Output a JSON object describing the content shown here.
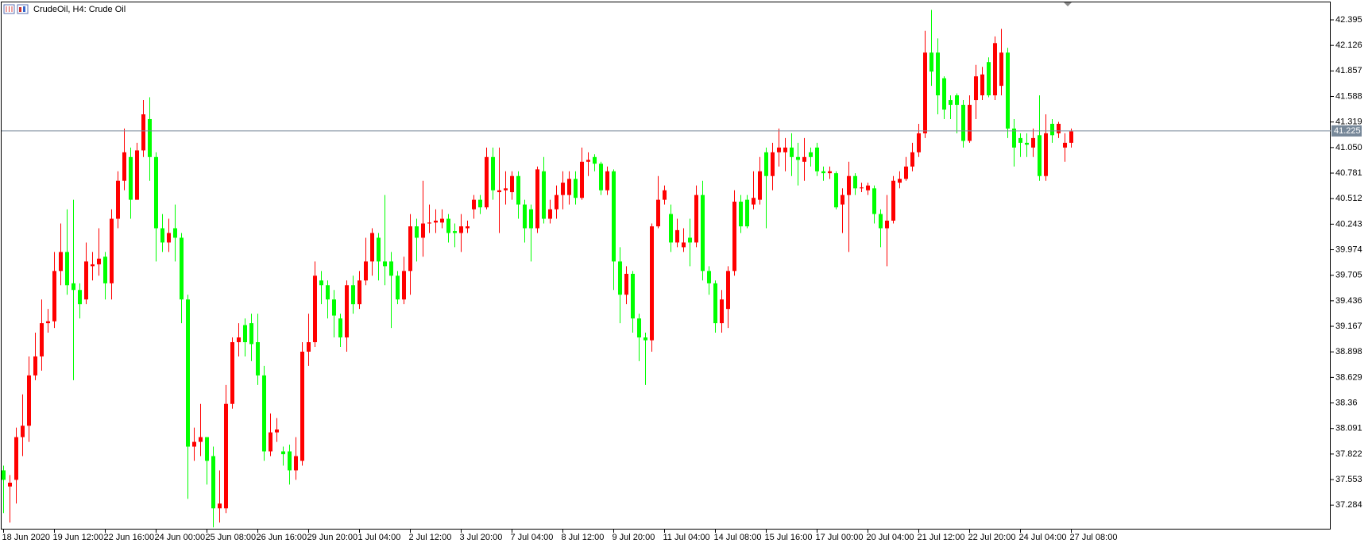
{
  "chart_data": {
    "type": "candlestick",
    "title": "CrudeOil, H4:  Crude Oil",
    "up_color": "#ff0000",
    "down_color": "#00ff00",
    "last_price": 41.225,
    "ylim": [
      37.035,
      42.579
    ],
    "yticks": [
      42.395,
      42.126,
      41.857,
      41.588,
      41.319,
      {
        "value": 41.05,
        "label": "41.050"
      },
      40.781,
      40.512,
      40.243,
      39.974,
      39.705,
      39.436,
      39.167,
      38.898,
      38.629,
      38.36,
      38.091,
      37.822,
      37.553,
      37.284
    ],
    "categories": [
      "18 Jun 2020",
      null,
      null,
      null,
      null,
      null,
      null,
      null,
      "19 Jun 12:00",
      null,
      null,
      null,
      null,
      null,
      null,
      null,
      "22 Jun 16:00",
      null,
      null,
      null,
      null,
      null,
      null,
      null,
      "24 Jun 00:00",
      null,
      null,
      null,
      null,
      null,
      null,
      null,
      "25 Jun 08:00",
      null,
      null,
      null,
      null,
      null,
      null,
      null,
      "26 Jun 16:00",
      null,
      null,
      null,
      null,
      null,
      null,
      null,
      "29 Jun 20:00",
      null,
      null,
      null,
      null,
      null,
      null,
      null,
      "1 Jul 04:00",
      null,
      null,
      null,
      null,
      null,
      null,
      null,
      "2 Jul 12:00",
      null,
      null,
      null,
      null,
      null,
      null,
      null,
      "3 Jul 20:00",
      null,
      null,
      null,
      null,
      null,
      null,
      null,
      "7 Jul 04:00",
      null,
      null,
      null,
      null,
      null,
      null,
      null,
      "8 Jul 12:00",
      null,
      null,
      null,
      null,
      null,
      null,
      null,
      "9 Jul 20:00",
      null,
      null,
      null,
      null,
      null,
      null,
      null,
      "11 Jul 04:00",
      null,
      null,
      null,
      null,
      null,
      null,
      null,
      "14 Jul 08:00",
      null,
      null,
      null,
      null,
      null,
      null,
      null,
      "15 Jul 16:00",
      null,
      null,
      null,
      null,
      null,
      null,
      null,
      "17 Jul 00:00",
      null,
      null,
      null,
      null,
      null,
      null,
      null,
      "20 Jul 04:00",
      null,
      null,
      null,
      null,
      null,
      null,
      null,
      "21 Jul 12:00",
      null,
      null,
      null,
      null,
      null,
      null,
      null,
      "22 Jul 20:00",
      null,
      null,
      null,
      null,
      null,
      null,
      null,
      "24 Jul 04:00",
      null,
      null,
      null,
      null,
      null,
      null,
      null,
      "27 Jul 08:00"
    ],
    "open": [
      37.65,
      37.48,
      37.55,
      38.0,
      38.12,
      38.65,
      38.85,
      39.2,
      39.22,
      39.75,
      39.95,
      39.62,
      39.55,
      39.45,
      39.8,
      39.82,
      39.9,
      39.62,
      40.3,
      40.7,
      40.95,
      40.5,
      41.02,
      41.35,
      40.95,
      40.2,
      40.05,
      40.2,
      40.1,
      39.45,
      37.9,
      37.95,
      38.0,
      37.8,
      37.25,
      37.25,
      38.35,
      39.0,
      39.18,
      39.2,
      39.0,
      38.65,
      37.85,
      38.05,
      37.85,
      37.85,
      37.65,
      37.75,
      38.9,
      39.0,
      39.65,
      39.6,
      39.45,
      39.25,
      39.05,
      39.6,
      39.4,
      39.65,
      39.85,
      40.1,
      39.85,
      39.85,
      39.7,
      39.45,
      39.75,
      40.22,
      40.1,
      40.25,
      40.26,
      40.26,
      40.3,
      40.17,
      40.15,
      40.2,
      40.4,
      40.5,
      40.42,
      40.95,
      40.58,
      40.6,
      40.58,
      40.75,
      40.45,
      40.4,
      40.2,
      40.8,
      40.3,
      40.4,
      40.55,
      40.55,
      40.72,
      40.52,
      40.9,
      40.95,
      40.88,
      40.6,
      40.8,
      39.85,
      39.5,
      39.72,
      39.25,
      39.05,
      39.02,
      40.22,
      40.5,
      40.35,
      40.05,
      40.0,
      40.1,
      40.05,
      40.55,
      39.75,
      39.62,
      39.2,
      39.35,
      39.75,
      40.48,
      40.5,
      40.45,
      40.5,
      41.0,
      40.75,
      41.0,
      41.0,
      41.05,
      40.95,
      40.9,
      41.0,
      41.05,
      40.8,
      40.78,
      40.78,
      40.45,
      40.55,
      40.75,
      40.62,
      40.6,
      40.62,
      40.35,
      40.2,
      40.28,
      40.68,
      40.72,
      40.85,
      41.0,
      41.2,
      42.05,
      42.05,
      41.78,
      41.55,
      41.6,
      41.5,
      41.12,
      41.55,
      41.6,
      41.95,
      41.6,
      41.7,
      42.05,
      41.25,
      41.15,
      41.1,
      41.05,
      41.18,
      40.75,
      41.3,
      41.2,
      41.05,
      41.1
    ],
    "high": [
      37.7,
      37.6,
      38.1,
      38.45,
      38.85,
      39.1,
      39.45,
      39.35,
      39.95,
      40.25,
      40.4,
      40.5,
      39.62,
      40.05,
      39.95,
      40.2,
      39.95,
      40.4,
      40.8,
      41.25,
      41.05,
      41.1,
      41.55,
      41.58,
      41.0,
      40.35,
      40.3,
      40.45,
      40.15,
      39.5,
      38.1,
      38.35,
      38.0,
      37.9,
      37.65,
      38.55,
      39.05,
      39.2,
      39.25,
      39.3,
      39.3,
      38.75,
      38.25,
      38.2,
      37.9,
      37.92,
      38.0,
      39.0,
      39.3,
      39.85,
      39.75,
      39.65,
      39.55,
      39.3,
      39.65,
      39.7,
      39.75,
      40.1,
      40.2,
      40.15,
      40.55,
      39.95,
      39.75,
      39.9,
      40.35,
      40.3,
      40.7,
      40.45,
      40.4,
      40.4,
      40.35,
      40.25,
      40.35,
      40.28,
      40.55,
      40.55,
      41.05,
      41.05,
      41.05,
      40.8,
      40.8,
      40.8,
      40.5,
      40.45,
      40.85,
      40.95,
      40.5,
      40.65,
      40.8,
      40.8,
      40.8,
      41.05,
      41.0,
      40.98,
      40.9,
      40.85,
      40.82,
      40.0,
      39.8,
      39.75,
      39.3,
      39.1,
      40.25,
      40.75,
      40.65,
      40.45,
      40.3,
      40.2,
      40.3,
      40.65,
      40.7,
      39.8,
      39.65,
      39.55,
      39.8,
      40.6,
      40.55,
      40.55,
      40.8,
      40.95,
      41.05,
      41.1,
      41.25,
      41.15,
      41.2,
      41.1,
      41.15,
      41.05,
      41.1,
      40.85,
      40.85,
      40.8,
      40.62,
      40.9,
      40.78,
      40.68,
      40.68,
      40.65,
      40.4,
      40.55,
      40.75,
      40.8,
      40.95,
      41.1,
      41.3,
      42.28,
      42.5,
      42.2,
      41.8,
      41.6,
      41.62,
      41.55,
      41.6,
      41.92,
      41.9,
      42.0,
      42.22,
      42.3,
      42.1,
      41.35,
      41.2,
      41.2,
      41.25,
      41.6,
      41.4,
      41.35,
      41.32,
      41.2,
      41.25
    ],
    "low": [
      37.2,
      37.1,
      37.3,
      37.8,
      37.95,
      38.6,
      38.7,
      39.1,
      39.15,
      39.6,
      39.5,
      38.6,
      39.25,
      39.4,
      39.65,
      39.7,
      39.45,
      39.45,
      40.2,
      40.6,
      40.3,
      40.5,
      40.95,
      40.7,
      39.85,
      39.95,
      39.95,
      39.85,
      39.2,
      37.35,
      37.75,
      37.8,
      37.5,
      37.05,
      37.1,
      37.2,
      38.3,
      38.85,
      38.85,
      38.8,
      38.55,
      37.75,
      37.8,
      37.95,
      37.7,
      37.5,
      37.55,
      37.7,
      38.75,
      38.95,
      39.4,
      39.25,
      39.05,
      38.95,
      38.9,
      39.3,
      39.35,
      39.6,
      39.7,
      39.65,
      39.6,
      39.15,
      39.4,
      39.4,
      39.5,
      39.85,
      39.9,
      40.15,
      40.15,
      40.2,
      40.05,
      40.0,
      39.95,
      40.15,
      40.3,
      40.35,
      40.4,
      40.5,
      40.15,
      40.45,
      40.5,
      40.3,
      40.05,
      39.85,
      40.15,
      40.25,
      40.25,
      40.3,
      40.4,
      40.45,
      40.45,
      40.5,
      40.75,
      40.8,
      40.55,
      40.55,
      39.55,
      39.2,
      39.4,
      39.1,
      38.8,
      38.55,
      38.9,
      40.2,
      40.45,
      39.95,
      40.0,
      39.95,
      39.8,
      40.0,
      39.65,
      39.5,
      39.1,
      39.1,
      39.15,
      39.7,
      40.15,
      40.2,
      40.4,
      40.45,
      40.2,
      40.6,
      40.85,
      40.8,
      40.75,
      40.65,
      40.7,
      40.85,
      40.75,
      40.7,
      40.72,
      40.4,
      40.15,
      39.95,
      40.55,
      40.58,
      40.55,
      40.25,
      40.0,
      39.8,
      40.25,
      40.62,
      40.7,
      40.8,
      40.95,
      41.15,
      41.7,
      41.4,
      41.35,
      41.35,
      41.2,
      41.05,
      41.1,
      41.35,
      41.55,
      41.58,
      41.55,
      41.6,
      41.15,
      40.85,
      40.95,
      40.95,
      40.95,
      40.7,
      40.7,
      41.1,
      41.15,
      40.9,
      41.05
    ],
    "close": [
      37.55,
      37.52,
      38.0,
      38.12,
      38.65,
      38.85,
      39.2,
      39.22,
      39.75,
      39.95,
      39.6,
      39.55,
      39.4,
      39.85,
      39.82,
      39.88,
      39.62,
      40.3,
      40.7,
      41.0,
      40.5,
      41.02,
      41.4,
      40.95,
      40.2,
      40.05,
      40.15,
      40.1,
      39.45,
      37.9,
      37.95,
      38.0,
      37.75,
      37.25,
      37.3,
      38.35,
      39.0,
      39.05,
      39.0,
      38.98,
      38.65,
      37.85,
      38.05,
      38.08,
      37.82,
      37.65,
      37.8,
      38.9,
      39.0,
      39.7,
      39.6,
      39.45,
      39.28,
      39.05,
      39.6,
      39.4,
      39.65,
      39.85,
      40.15,
      39.85,
      39.8,
      39.7,
      39.45,
      39.75,
      40.22,
      40.1,
      40.25,
      40.26,
      40.28,
      40.3,
      40.15,
      40.15,
      40.22,
      40.22,
      40.5,
      40.42,
      40.95,
      40.6,
      40.6,
      40.62,
      40.75,
      40.45,
      40.2,
      40.2,
      40.82,
      40.3,
      40.4,
      40.55,
      40.68,
      40.72,
      40.52,
      40.9,
      40.92,
      40.88,
      40.6,
      40.8,
      39.85,
      39.5,
      39.72,
      39.25,
      39.05,
      39.02,
      40.22,
      40.5,
      40.6,
      40.05,
      40.18,
      40.05,
      40.05,
      40.55,
      39.75,
      39.62,
      39.2,
      39.45,
      39.75,
      40.48,
      40.22,
      40.22,
      40.52,
      40.8,
      40.75,
      41.0,
      41.05,
      41.05,
      40.95,
      40.92,
      40.95,
      40.95,
      40.8,
      40.78,
      40.8,
      40.42,
      40.55,
      40.75,
      40.62,
      40.63,
      40.65,
      40.35,
      40.2,
      40.28,
      40.7,
      40.72,
      40.85,
      41.0,
      41.2,
      42.05,
      41.85,
      41.6,
      41.45,
      41.5,
      41.5,
      41.12,
      41.5,
      41.8,
      41.82,
      41.6,
      42.15,
      42.05,
      41.25,
      41.05,
      41.1,
      41.08,
      41.15,
      40.75,
      41.2,
      41.18,
      41.3,
      41.1,
      41.22
    ]
  }
}
